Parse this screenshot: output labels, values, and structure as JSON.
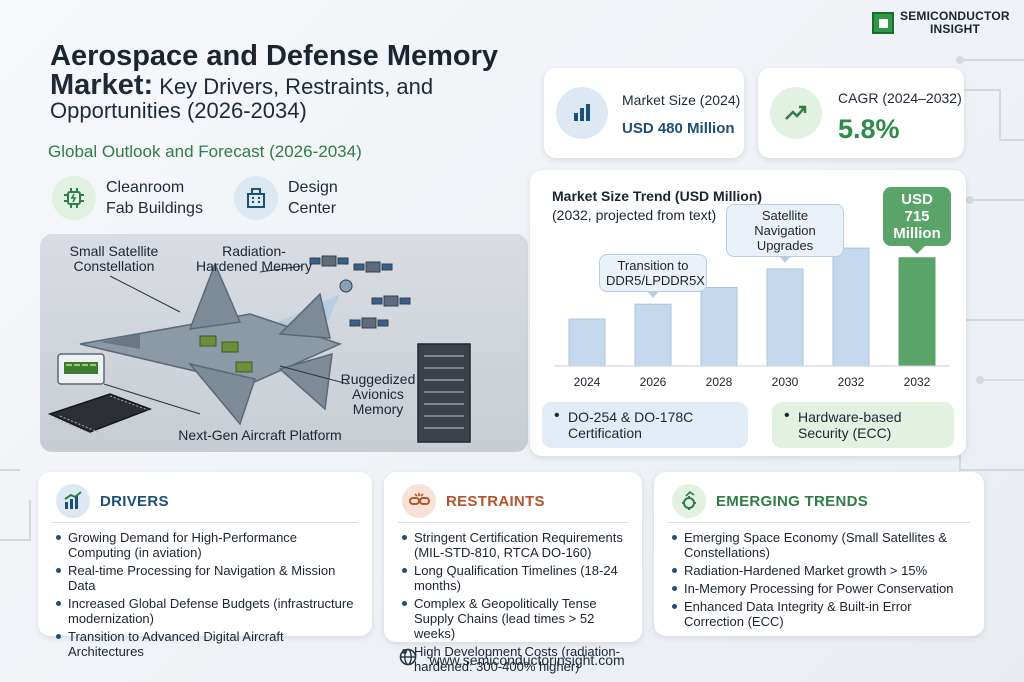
{
  "brand": {
    "line1": "SEMICONDUCTOR",
    "line2": "INSIGHT"
  },
  "title": {
    "line1": "Aerospace and Defense Memory",
    "bold2": "Market:",
    "line2": " Key Drivers, Restraints, and",
    "line3": "Opportunities (2026-2034)",
    "subtitle": "Global Outlook and Forecast (2026-2034)"
  },
  "facilities": [
    {
      "label": "Cleanroom Fab Buildings",
      "icon": "chip-icon"
    },
    {
      "label": "Design Center",
      "icon": "building-icon"
    }
  ],
  "illustration": {
    "labels": {
      "satellite": "Small Satellite Constellation",
      "radiation": "Radiation-Hardened Memory",
      "avionics": "Ruggedized Avionics Memory",
      "platform": "Next-Gen Aircraft Platform"
    }
  },
  "stats": {
    "market_size": {
      "label": "Market Size (2024)",
      "value": "USD 480 Million",
      "icon": "bar-chart-icon"
    },
    "cagr": {
      "label": "CAGR (2024–2032)",
      "value": "5.8%",
      "icon": "trend-up-icon"
    }
  },
  "chart_data": {
    "type": "bar",
    "title": "Market Size Trend (USD Million)",
    "subtitle": "(2032, projected from text)",
    "categories": [
      "2024",
      "2026",
      "2028",
      "2030",
      "2032",
      "2032"
    ],
    "values": [
      480,
      537,
      601,
      672,
      752,
      715
    ],
    "ylim": [
      300,
      760
    ],
    "highlight_index": 5,
    "highlight_label": "USD 715 Million",
    "annotations": [
      {
        "text": "Transition to DDR5/LPDDR5X",
        "index": 1
      },
      {
        "text": "Satellite Navigation Upgrades",
        "index": 3
      }
    ],
    "colors": {
      "bar": "#c5d9ee",
      "bar_stroke": "#a9c4e0",
      "highlight": "#5aa469"
    }
  },
  "pills": [
    {
      "text": "DO-254 & DO-178C Certification",
      "color": "#e2ecf6"
    },
    {
      "text": "Hardware-based Security (ECC)",
      "color": "#e3f1e3"
    }
  ],
  "sections": {
    "drivers": {
      "title": "DRIVERS",
      "color": "#1f4e79",
      "icon": "growth-chart-icon",
      "items": [
        "Growing Demand for High-Performance Computing (in aviation)",
        "Real-time Processing for Navigation & Mission Data",
        "Increased Global Defense Budgets (infrastructure modernization)",
        "Transition to Advanced Digital Aircraft Architectures"
      ]
    },
    "restraints": {
      "title": "RESTRAINTS",
      "color": "#b5542b",
      "icon": "broken-chain-icon",
      "items": [
        "Stringent Certification Requirements (MIL-STD-810, RTCA DO-160)",
        "Long Qualification Timelines (18-24 months)",
        "Complex & Geopolitically Tense Supply Chains (lead times > 52 weeks)",
        "High Development Costs (radiation-hardened: 300-400% higher)"
      ]
    },
    "trends": {
      "title": "EMERGING TRENDS",
      "color": "#2e7d45",
      "icon": "gear-trend-icon",
      "items": [
        "Emerging Space Economy (Small Satellites & Constellations)",
        "Radiation-Hardened Market growth > 15%",
        "In-Memory Processing for Power Conservation",
        "Enhanced Data Integrity & Built-in Error Correction (ECC)"
      ]
    }
  },
  "footer": {
    "url": "www.semiconductorinsight.com",
    "icon": "globe-icon"
  }
}
